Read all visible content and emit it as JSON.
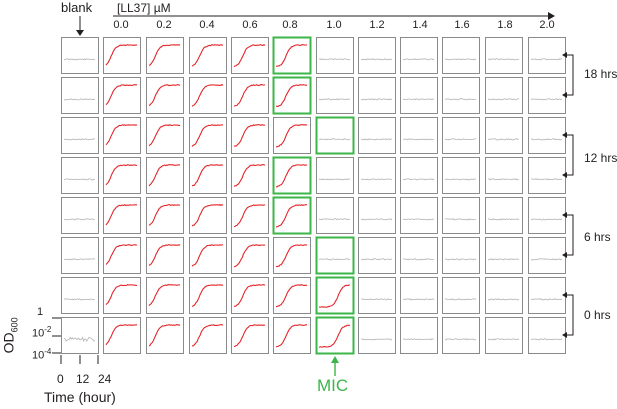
{
  "header": {
    "blank_label": "blank",
    "concentration_label": "[LL37] µM",
    "concentrations": [
      "0.0",
      "0.2",
      "0.4",
      "0.6",
      "0.8",
      "1.0",
      "1.2",
      "1.4",
      "1.6",
      "1.8",
      "2.0"
    ]
  },
  "right_labels": [
    "18 hrs",
    "12 hrs",
    "6 hrs",
    "0 hrs"
  ],
  "axis": {
    "y_label": "OD",
    "y_label_sub": "600",
    "y_ticks": [
      "1",
      "10",
      "10"
    ],
    "y_tick_exponents": [
      "",
      "-2",
      "-4"
    ],
    "x_ticks": [
      "0",
      "12",
      "24"
    ],
    "x_label": "Time (hour)"
  },
  "mic_label": "MIC",
  "colors": {
    "growth": "#e3262b",
    "no_growth": "#b3b3b3",
    "mic_box": "#3cb54a",
    "box": "#8a8a8a",
    "text": "#231f20"
  },
  "grid": {
    "rows": 8,
    "columns": 12,
    "columns_with_growth_per_row": [
      5,
      5,
      5,
      5,
      5,
      5,
      6,
      6
    ],
    "mic_highlight_column_per_row": [
      5,
      5,
      6,
      5,
      5,
      6,
      6,
      6
    ]
  }
}
